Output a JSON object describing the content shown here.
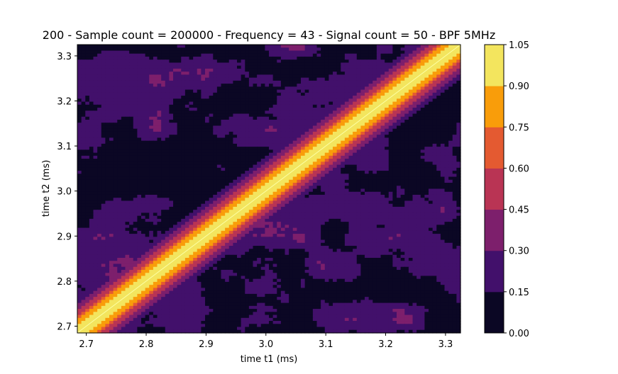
{
  "chart_data": {
    "type": "heatmap",
    "title": "200 - Sample count = 200000 - Frequency = 43 - Signal count = 50 - BPF 5MHz",
    "xlabel": "time t1 (ms)",
    "ylabel": "time t2 (ms)",
    "xlim": [
      2.685,
      3.325
    ],
    "ylim": [
      2.685,
      3.325
    ],
    "x_ticks": [
      "2.7",
      "2.8",
      "2.9",
      "3.0",
      "3.1",
      "3.2",
      "3.3"
    ],
    "y_ticks": [
      "2.7",
      "2.8",
      "2.9",
      "3.0",
      "3.1",
      "3.2",
      "3.3"
    ],
    "colormap": "inferno",
    "colorbar": {
      "levels": [
        0.0,
        0.15,
        0.3,
        0.45,
        0.6,
        0.75,
        0.9,
        1.05
      ],
      "tick_labels": [
        "0.00",
        "0.15",
        "0.30",
        "0.45",
        "0.60",
        "0.75",
        "0.90",
        "1.05"
      ],
      "colors": [
        "#0b0724",
        "#42106b",
        "#7d1f6c",
        "#b93454",
        "#e45a31",
        "#f99d0a",
        "#f3e55e"
      ]
    },
    "description_values": {
      "diagonal_peak": 1.0,
      "band_halfwidth_ms": 0.07,
      "background_range": [
        0.0,
        0.3
      ]
    }
  }
}
